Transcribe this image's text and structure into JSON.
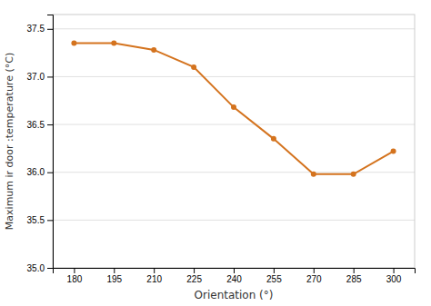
{
  "chart_data": {
    "type": "line",
    "x": [
      180,
      195,
      210,
      225,
      240,
      255,
      270,
      285,
      300
    ],
    "y": [
      37.35,
      37.35,
      37.28,
      37.1,
      36.68,
      36.35,
      35.98,
      35.98,
      36.22
    ],
    "color": "#d4731e",
    "marker": "circle",
    "xlabel": "Orientation (°)",
    "ylabel": "Maximum ir door :temperature (°C)",
    "xlim": [
      172,
      308
    ],
    "ylim": [
      35.0,
      37.65
    ],
    "xticks": [
      180,
      195,
      210,
      225,
      240,
      255,
      270,
      285,
      300
    ],
    "yticks": [
      {
        "value": 35.0,
        "label": "35.0"
      },
      35.5,
      {
        "value": 36.0,
        "label": "36.0"
      },
      36.5,
      {
        "value": 37.0,
        "label": "37.0"
      },
      37.5
    ],
    "grid": "y"
  }
}
